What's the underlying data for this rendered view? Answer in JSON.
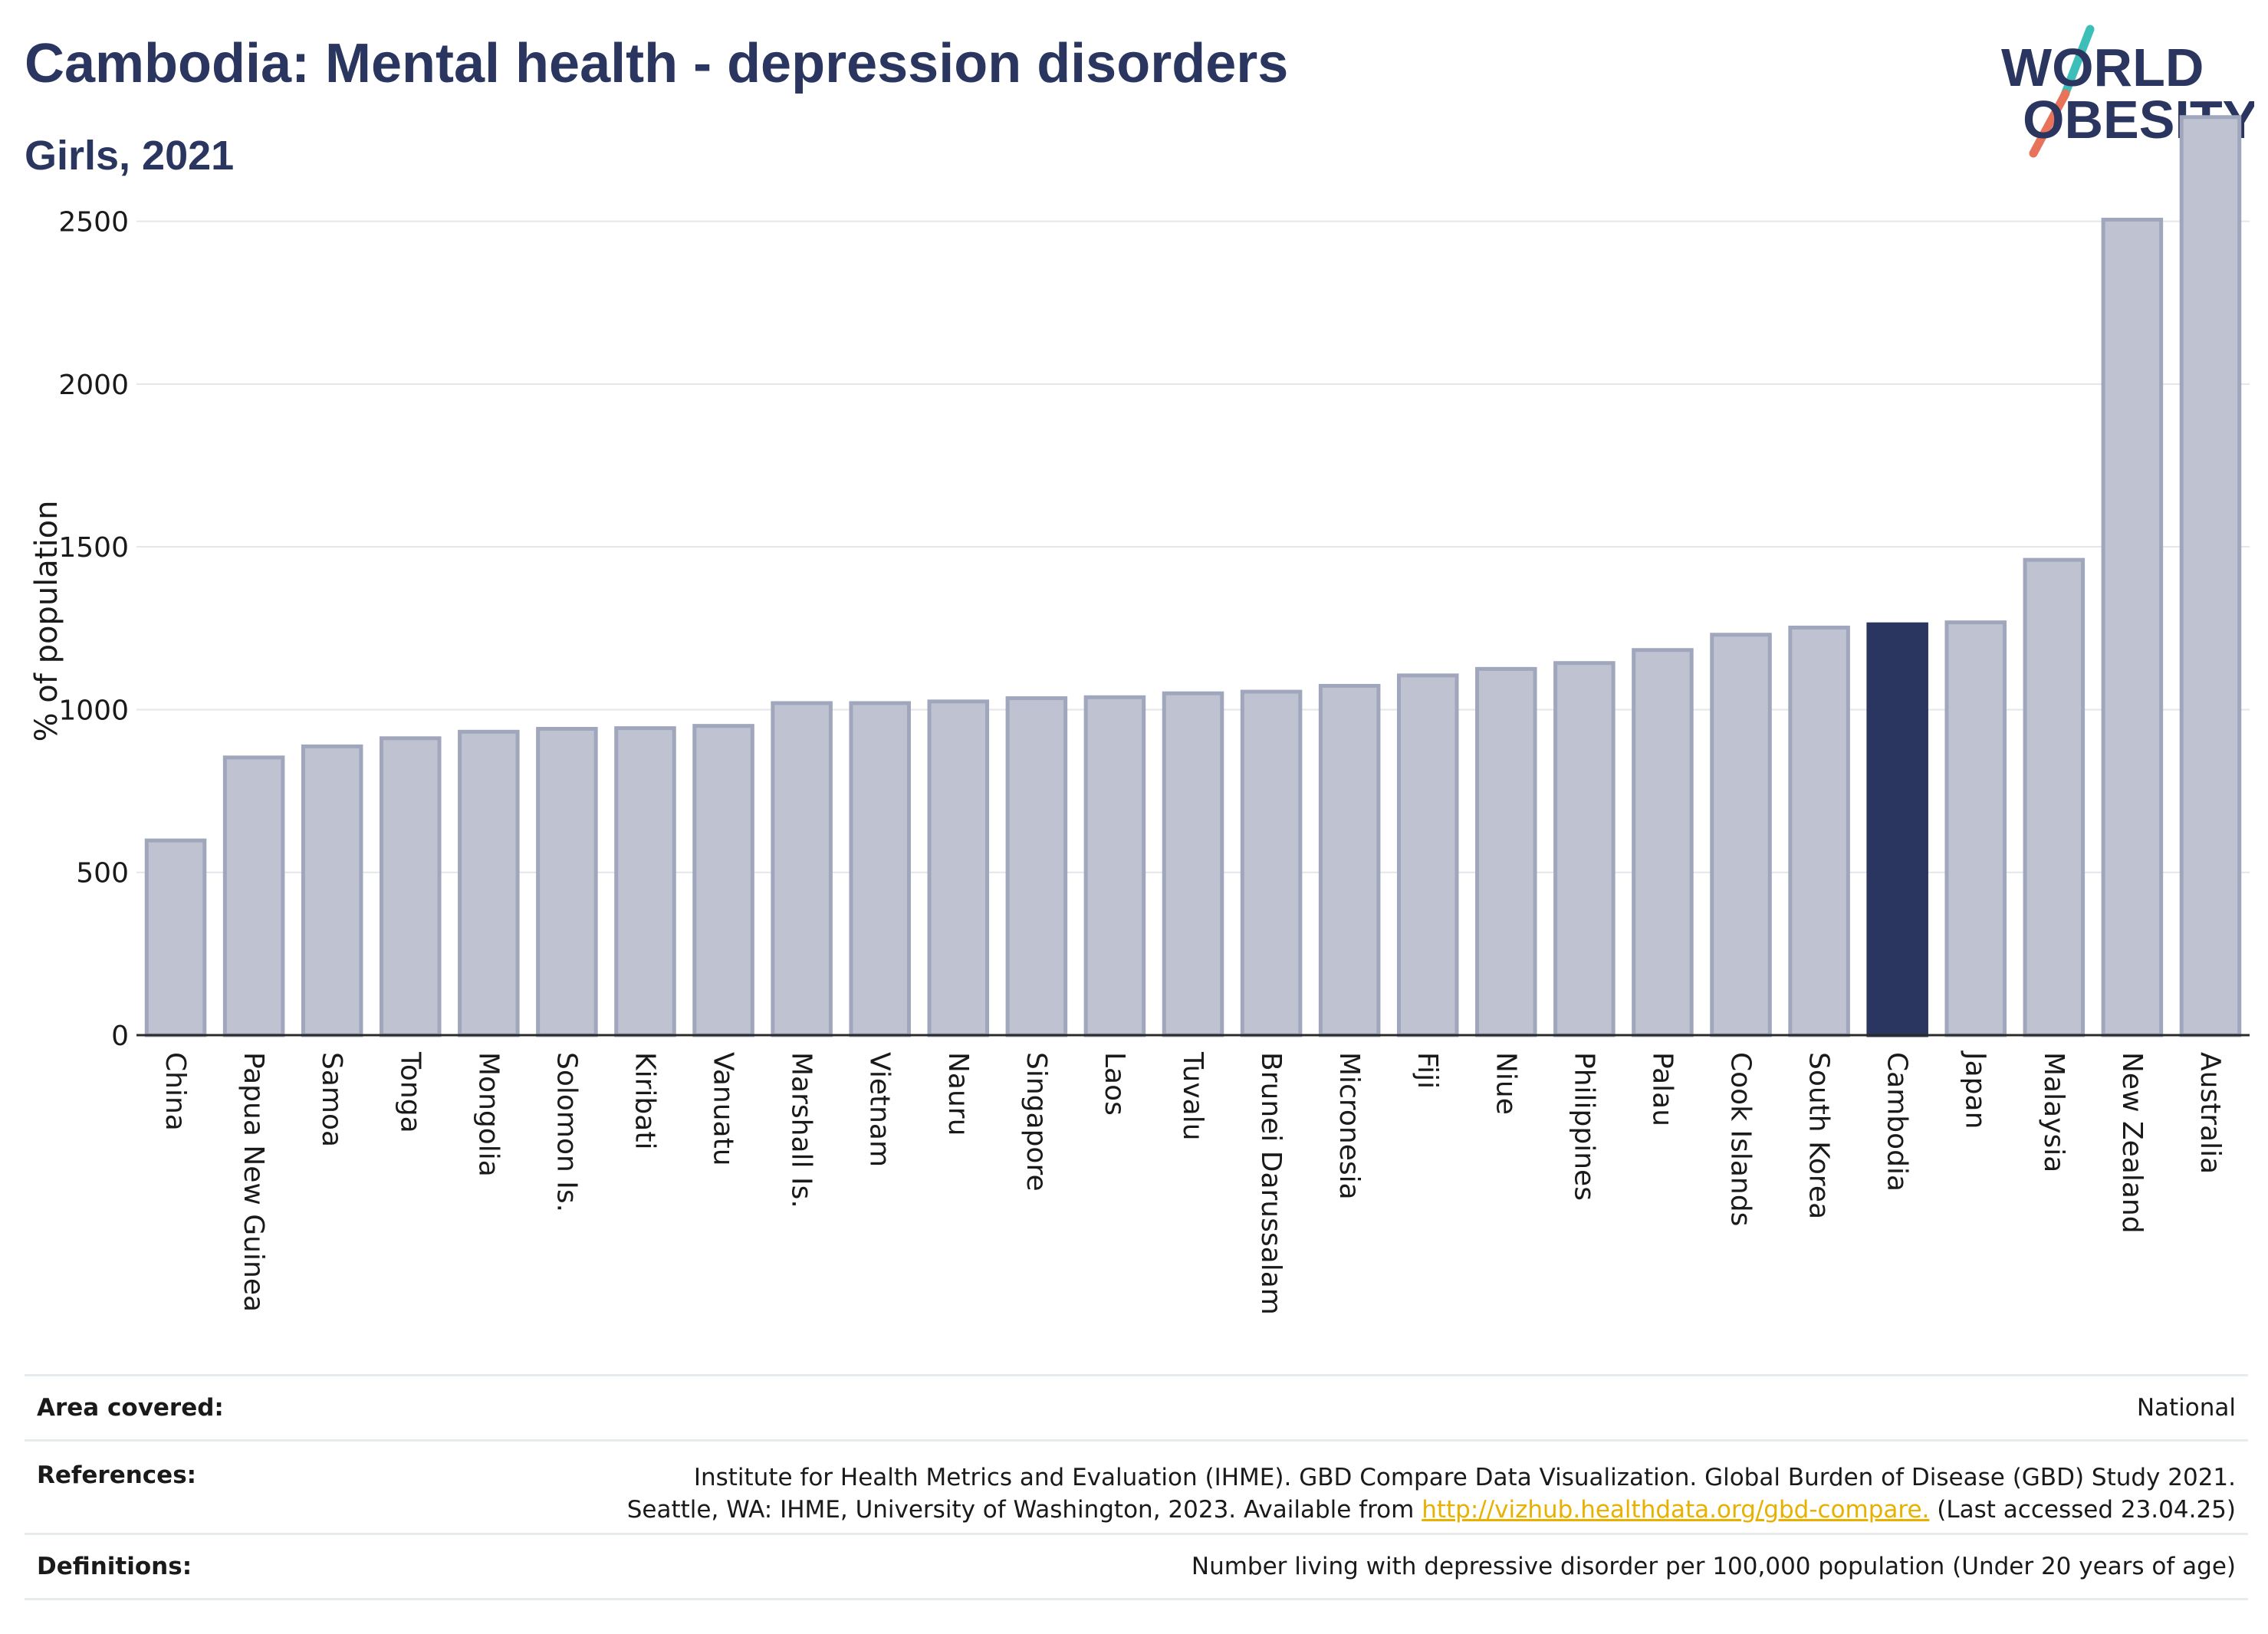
{
  "header": {
    "title": "Cambodia: Mental health - depression disorders",
    "subtitle": "Girls, 2021"
  },
  "logo": {
    "line1": "WORLD",
    "line2": "OBESITY"
  },
  "chart_data": {
    "type": "bar",
    "ylabel": "% of population",
    "ylim": [
      0,
      2850
    ],
    "yticks": [
      0,
      500,
      1000,
      1500,
      2000,
      2500
    ],
    "grid": true,
    "highlight": "Cambodia",
    "colors": {
      "bar": "#bfc3d1",
      "bar_stroke": "#a0a6bc",
      "highlight": "#2a3560",
      "grid": "#e3e6ea",
      "axis": "#2b2b2b"
    },
    "categories": [
      "China",
      "Papua New Guinea",
      "Samoa",
      "Tonga",
      "Mongolia",
      "Solomon Is.",
      "Kiribati",
      "Vanuatu",
      "Marshall Is.",
      "Vietnam",
      "Nauru",
      "Singapore",
      "Laos",
      "Tuvalu",
      "Brunei Darussalam",
      "Micronesia",
      "Fiji",
      "Niue",
      "Philippines",
      "Palau",
      "Cook Islands",
      "South Korea",
      "Cambodia",
      "Japan",
      "Malaysia",
      "New Zealand",
      "Australia"
    ],
    "values": [
      598,
      853,
      887,
      912,
      932,
      941,
      943,
      950,
      1020,
      1020,
      1025,
      1035,
      1038,
      1050,
      1055,
      1073,
      1105,
      1125,
      1143,
      1183,
      1230,
      1252,
      1262,
      1268,
      1460,
      2505,
      2820
    ]
  },
  "footer": {
    "area_label": "Area covered:",
    "area_value": "National",
    "references_label": "References:",
    "references_line1": "Institute for Health Metrics and Evaluation (IHME). GBD Compare Data Visualization. Global Burden of Disease (GBD) Study 2021.",
    "references_line2_pre": "Seattle, WA: IHME, University of Washington, 2023. Available from",
    "references_link": "http://vizhub.healthdata.org/gbd-compare.",
    "references_line2_post": "(Last accessed 23.04.25)",
    "definitions_label": "Definitions:",
    "definitions_value": "Number living with depressive disorder per 100,000 population (Under 20 years of age)"
  }
}
